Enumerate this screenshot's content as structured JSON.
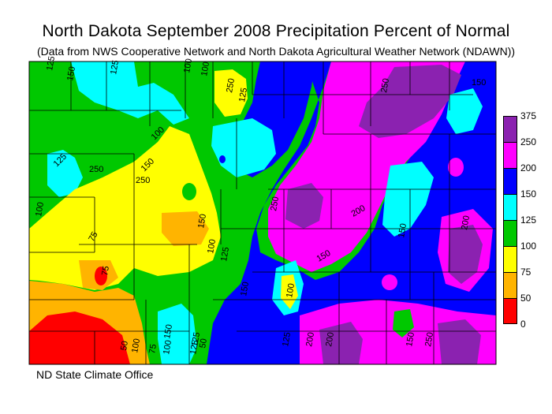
{
  "title": "North Dakota September 2008 Precipitation Percent of Normal",
  "subtitle": "(Data from NWS Cooperative Network and North Dakota Agricultural Weather Network (NDAWN))",
  "footer": "ND State Climate Office",
  "legend": {
    "labels": [
      "375",
      "250",
      "200",
      "150",
      "125",
      "100",
      "75",
      "50",
      "0"
    ],
    "colors": [
      "#8b22b0",
      "#ff00ff",
      "#0000ff",
      "#00ffff",
      "#00c800",
      "#ffff00",
      "#ffb400",
      "#ff0000"
    ]
  },
  "contour_labels": [
    "125",
    "150",
    "125",
    "100",
    "100",
    "125",
    "250",
    "250",
    "150",
    "250",
    "100",
    "125",
    "100",
    "150",
    "250",
    "200",
    "75",
    "75",
    "100",
    "125",
    "150",
    "125",
    "150",
    "50",
    "100",
    "150",
    "200",
    "100",
    "125",
    "200",
    "250",
    "200",
    "150",
    "50",
    "75",
    "100",
    "125",
    "150",
    "250",
    "150"
  ],
  "colors": {
    "purple": "#8b22b0",
    "magenta": "#ff00ff",
    "blue": "#0000ff",
    "cyan": "#00ffff",
    "green": "#00c800",
    "yellow": "#ffff00",
    "orange": "#ffb400",
    "red": "#ff0000"
  }
}
